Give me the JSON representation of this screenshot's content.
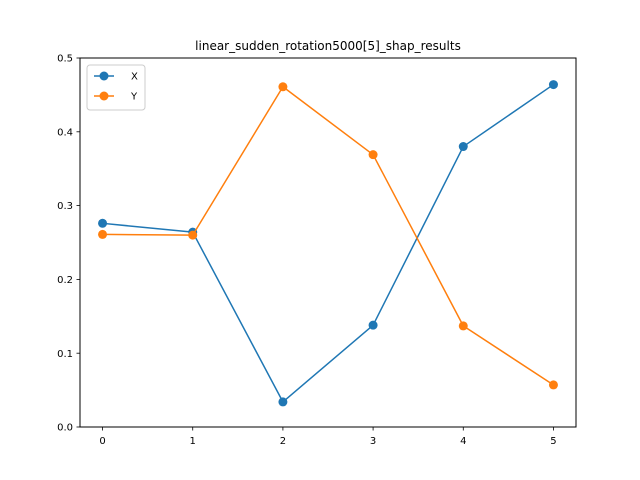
{
  "chart_data": {
    "type": "line",
    "title": "linear_sudden_rotation5000[5]_shap_results",
    "xlabel": "",
    "ylabel": "",
    "x": [
      0,
      1,
      2,
      3,
      4,
      5
    ],
    "xticks": [
      "0",
      "1",
      "2",
      "3",
      "4",
      "5"
    ],
    "yticks": [
      "0.0",
      "0.1",
      "0.2",
      "0.3",
      "0.4",
      "0.5"
    ],
    "xlim": [
      -0.25,
      5.25
    ],
    "ylim": [
      0.0,
      0.5
    ],
    "grid": false,
    "legend_position": "upper-left",
    "series": [
      {
        "name": "X",
        "color": "#1f77b4",
        "marker": "circle",
        "values": [
          0.276,
          0.264,
          0.034,
          0.138,
          0.38,
          0.464
        ]
      },
      {
        "name": "Y",
        "color": "#ff7f0e",
        "marker": "circle",
        "values": [
          0.261,
          0.26,
          0.461,
          0.369,
          0.137,
          0.057
        ]
      }
    ]
  }
}
